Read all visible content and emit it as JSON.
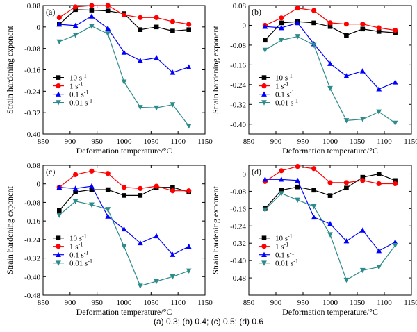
{
  "caption": "(a) 0.3; (b) 0.4; (c) 0.5; (d) 0.6",
  "colors": {
    "10": "#000000",
    "1": "#ff0000",
    "0.1": "#0000ff",
    "0.01": "#2e8b8b"
  },
  "chart_data": [
    {
      "type": "line",
      "panel_label": "(a)",
      "xlabel": "Deformation temperature/°C",
      "ylabel": "Strain hardening exponent",
      "xlim": [
        850,
        1150
      ],
      "ylim": [
        -0.4,
        0.08
      ],
      "xticks": [
        "850",
        "900",
        "950",
        "1000",
        "1050",
        "1100",
        "1150"
      ],
      "yticks": [
        "0.08",
        "0",
        "-0.08",
        "-0.16",
        "-0.24",
        "-0.32",
        "-0.40"
      ],
      "yticks_values": [
        0.08,
        0,
        -0.08,
        -0.16,
        -0.24,
        -0.32,
        -0.4
      ],
      "x": [
        880,
        910,
        940,
        970,
        1000,
        1030,
        1060,
        1090,
        1120
      ],
      "series": [
        {
          "name": "10 s",
          "values": [
            0.01,
            0.065,
            0.063,
            0.06,
            0.05,
            -0.01,
            0.0,
            -0.015,
            -0.01
          ]
        },
        {
          "name": "1 s",
          "values": [
            0.035,
            0.075,
            0.08,
            0.08,
            0.045,
            0.035,
            0.035,
            0.02,
            0.01
          ]
        },
        {
          "name": "0.1 s",
          "values": [
            0.01,
            0.005,
            0.04,
            -0.005,
            -0.095,
            -0.125,
            -0.115,
            -0.17,
            -0.15
          ]
        },
        {
          "name": "0.01 s",
          "values": [
            -0.055,
            -0.03,
            0.003,
            -0.025,
            -0.205,
            -0.3,
            -0.302,
            -0.29,
            -0.37
          ]
        }
      ],
      "legend_labels": [
        "10 s",
        "1 s",
        "0.1 s",
        "0.01 s"
      ],
      "legend_sup": "-1",
      "legend": "left"
    },
    {
      "type": "line",
      "panel_label": "(b)",
      "xlabel": "Deformation temperature/°C",
      "ylabel": "Strain hardening exponent",
      "xlim": [
        850,
        1150
      ],
      "ylim": [
        -0.44,
        0.08
      ],
      "xticks": [
        "850",
        "900",
        "950",
        "1000",
        "1050",
        "1100",
        "1150"
      ],
      "yticks": [
        "0.08",
        "0",
        "-0.08",
        "-0.16",
        "-0.24",
        "-0.32",
        "-0.40"
      ],
      "yticks_values": [
        0.08,
        0,
        -0.08,
        -0.16,
        -0.24,
        -0.32,
        -0.4
      ],
      "x": [
        880,
        910,
        940,
        970,
        1000,
        1030,
        1060,
        1090,
        1120
      ],
      "series": [
        {
          "name": "10 s",
          "values": [
            -0.06,
            0.01,
            0.015,
            0.01,
            -0.005,
            -0.04,
            -0.015,
            -0.025,
            -0.03
          ]
        },
        {
          "name": "1 s",
          "values": [
            0.0,
            0.03,
            0.07,
            0.06,
            0.01,
            0.005,
            0.005,
            -0.01,
            -0.02
          ]
        },
        {
          "name": "0.1 s",
          "values": [
            -0.005,
            -0.01,
            0.01,
            -0.075,
            -0.155,
            -0.205,
            -0.185,
            -0.258,
            -0.23
          ]
        },
        {
          "name": "0.01 s",
          "values": [
            -0.1,
            -0.06,
            -0.045,
            -0.08,
            -0.255,
            -0.385,
            -0.38,
            -0.35,
            -0.395
          ]
        }
      ],
      "legend_labels": [
        "10 s",
        "1 s",
        "0.1 s",
        "0.01 s"
      ],
      "legend_sup": "-1",
      "legend": "left"
    },
    {
      "type": "line",
      "panel_label": "(c)",
      "xlabel": "Deformation temperature/°C",
      "ylabel": "Strain hardening exponent",
      "xlim": [
        850,
        1150
      ],
      "ylim": [
        -0.48,
        0.08
      ],
      "xticks": [
        "850",
        "900",
        "950",
        "1000",
        "1050",
        "1100",
        "1150"
      ],
      "yticks": [
        "0.08",
        "0",
        "-0.08",
        "-0.16",
        "-0.24",
        "-0.32",
        "-0.40",
        "-0.48"
      ],
      "yticks_values": [
        0.08,
        0,
        -0.08,
        -0.16,
        -0.24,
        -0.32,
        -0.4,
        -0.48
      ],
      "x": [
        880,
        910,
        940,
        970,
        1000,
        1030,
        1060,
        1090,
        1120
      ],
      "series": [
        {
          "name": "10 s",
          "values": [
            -0.115,
            -0.035,
            -0.025,
            -0.025,
            -0.05,
            -0.05,
            -0.015,
            -0.015,
            -0.035
          ]
        },
        {
          "name": "1 s",
          "values": [
            -0.015,
            0.04,
            0.055,
            0.045,
            -0.015,
            -0.02,
            -0.01,
            -0.03,
            -0.03
          ]
        },
        {
          "name": "0.1 s",
          "values": [
            -0.015,
            -0.02,
            -0.01,
            -0.14,
            -0.195,
            -0.255,
            -0.225,
            -0.305,
            -0.27
          ]
        },
        {
          "name": "0.01 s",
          "values": [
            -0.135,
            -0.075,
            -0.09,
            -0.11,
            -0.27,
            -0.44,
            -0.42,
            -0.4,
            -0.375
          ]
        }
      ],
      "legend_labels": [
        "10 s",
        "1 s",
        "0.1 s",
        "0.01 s"
      ],
      "legend_sup": "-1",
      "legend": "left"
    },
    {
      "type": "line",
      "panel_label": "(d)",
      "xlabel": "Deformation temperature/°C",
      "ylabel": "Strain hardening exponent",
      "xlim": [
        850,
        1150
      ],
      "ylim": [
        -0.56,
        0.04
      ],
      "xticks": [
        "850",
        "900",
        "950",
        "1000",
        "1050",
        "1100",
        "1150"
      ],
      "yticks": [
        "0",
        "-0.08",
        "-0.16",
        "-0.24",
        "-0.32",
        "-0.40",
        "-0.48"
      ],
      "yticks_values": [
        0,
        -0.08,
        -0.16,
        -0.24,
        -0.32,
        -0.4,
        -0.48
      ],
      "x": [
        880,
        910,
        940,
        970,
        1000,
        1030,
        1060,
        1090,
        1120
      ],
      "series": [
        {
          "name": "10 s",
          "values": [
            -0.16,
            -0.075,
            -0.06,
            -0.075,
            -0.1,
            -0.065,
            -0.015,
            0.0,
            -0.03
          ]
        },
        {
          "name": "1 s",
          "values": [
            -0.035,
            0.015,
            0.035,
            0.025,
            -0.04,
            -0.04,
            -0.03,
            -0.045,
            -0.045
          ]
        },
        {
          "name": "0.1 s",
          "values": [
            -0.025,
            -0.025,
            -0.03,
            -0.2,
            -0.23,
            -0.31,
            -0.26,
            -0.355,
            -0.315
          ]
        },
        {
          "name": "0.01 s",
          "values": [
            -0.165,
            -0.09,
            -0.12,
            -0.15,
            -0.28,
            -0.49,
            -0.445,
            -0.43,
            -0.33
          ]
        }
      ],
      "legend_labels": [
        "10 s",
        "1 s",
        "0.1 s",
        "0.01 s"
      ],
      "legend_sup": "-1",
      "legend": "left"
    }
  ]
}
